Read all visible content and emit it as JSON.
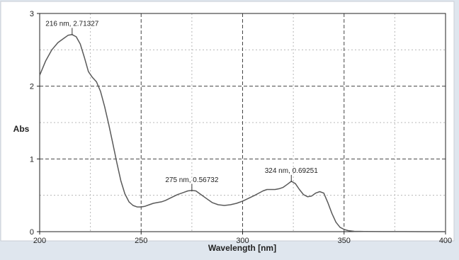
{
  "chart_data": {
    "type": "line",
    "title": "",
    "xlabel": "Wavelength [nm]",
    "ylabel": "Abs",
    "xlim": [
      200,
      400
    ],
    "ylim": [
      0,
      3
    ],
    "xticks": [
      200,
      250,
      300,
      350,
      400
    ],
    "yticks": [
      0,
      1,
      2,
      3
    ],
    "grid": "major dashed, minor dotted",
    "legend": "none",
    "line_color": "#5a5a5a",
    "series": [
      {
        "x": [
          200,
          203,
          206,
          209,
          212,
          214,
          216,
          218,
          220,
          222,
          224,
          226,
          228,
          230,
          232,
          234,
          236,
          238,
          240,
          242,
          244,
          246,
          248,
          250,
          252,
          254,
          256,
          258,
          260,
          262,
          265,
          268,
          271,
          273,
          275,
          277,
          279,
          282,
          285,
          288,
          291,
          294,
          297,
          300,
          303,
          306,
          308,
          310,
          312,
          314,
          316,
          318,
          320,
          322,
          324,
          326,
          328,
          330,
          332,
          334,
          336,
          338,
          340,
          342,
          344,
          346,
          348,
          350,
          352,
          355,
          360,
          370,
          380,
          390,
          400
        ],
        "y": [
          2.15,
          2.35,
          2.5,
          2.6,
          2.66,
          2.7,
          2.71,
          2.68,
          2.58,
          2.4,
          2.2,
          2.12,
          2.06,
          1.93,
          1.72,
          1.48,
          1.22,
          0.95,
          0.7,
          0.52,
          0.41,
          0.36,
          0.34,
          0.34,
          0.35,
          0.37,
          0.39,
          0.4,
          0.41,
          0.43,
          0.47,
          0.51,
          0.54,
          0.56,
          0.567,
          0.56,
          0.52,
          0.46,
          0.4,
          0.37,
          0.36,
          0.37,
          0.39,
          0.42,
          0.46,
          0.5,
          0.53,
          0.56,
          0.58,
          0.58,
          0.58,
          0.59,
          0.61,
          0.65,
          0.693,
          0.66,
          0.58,
          0.51,
          0.48,
          0.49,
          0.53,
          0.55,
          0.53,
          0.4,
          0.25,
          0.13,
          0.06,
          0.03,
          0.015,
          0.005,
          0.002,
          0.001,
          0.001,
          0.0,
          0.0
        ]
      }
    ],
    "annotations": [
      {
        "label": "216 nm, 2.71327",
        "x": 216,
        "y": 2.71327
      },
      {
        "label": "275 nm, 0.56732",
        "x": 275,
        "y": 0.56732
      },
      {
        "label": "324 nm, 0.69251",
        "x": 324,
        "y": 0.69251
      }
    ]
  }
}
